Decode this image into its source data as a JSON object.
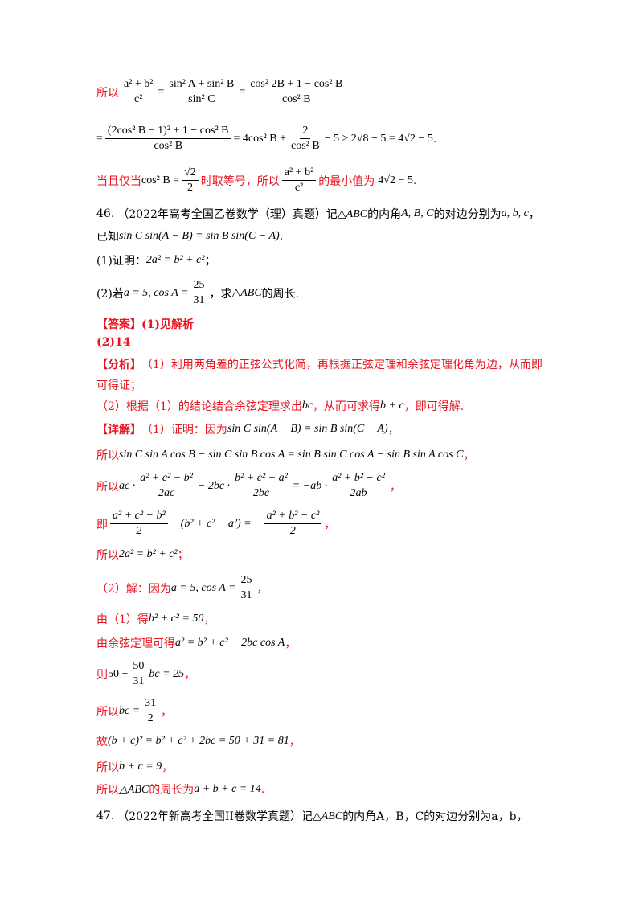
{
  "top": {
    "l1_prefix": "所以",
    "l1_math": [
      "a² + b²",
      "c²",
      "=",
      "sin² A + sin² B",
      "sin² C",
      "=",
      "cos² 2B + 1 − cos² B",
      "cos² B"
    ],
    "l2_math": [
      "=",
      "(2cos² B − 1)² + 1 − cos² B",
      "cos² B",
      "= 4cos² B +",
      "2",
      "cos² B",
      "− 5 ≥ 2√8 − 5 = 4√2 − 5",
      "."
    ],
    "l3_prefix": "当且仅当",
    "l3_math1": "cos² B =",
    "l3_frac": [
      "√2",
      "2"
    ],
    "l3_mid": "时取等号，所以",
    "l3_frac2": [
      "a² + b²",
      "c²"
    ],
    "l3_suffix": "的最小值为",
    "l3_value": "4√2 − 5",
    "l3_dot": "."
  },
  "q46": {
    "number": "46.",
    "source": "（2022年高考全国乙卷数学（理）真题）记",
    "triangle": "△ABC",
    "text1": "的内角",
    "angles": "A, B, C",
    "text2": "的对边分别为",
    "sides": "a, b, c",
    "text3": "，",
    "given_prefix": "已知",
    "given_math": "sin C sin(A − B) = sin B sin(C − A)",
    "given_dot": ".",
    "part1_label": "(1)证明：",
    "part1_math": "2a² = b² + c²",
    "part1_end": "；",
    "part2_label": "(2)若",
    "part2_math": "a = 5, cos A =",
    "part2_frac": [
      "25",
      "31"
    ],
    "part2_mid": "，求",
    "part2_tri": "△ABC",
    "part2_end": "的周长."
  },
  "answer": {
    "tag": "【答案】",
    "line1": "(1)见解析",
    "line2": "(2)14"
  },
  "analysis": {
    "tag": "【分析】",
    "text1": "（1）利用两角差的正弦公式化简，再根据正弦定理和余弦定理化角为边，从而即",
    "text2": "可得证；",
    "text3a": "（2）根据（1）的结论结合余弦定理求出",
    "text3b": "bc",
    "text3c": "，从而可求得",
    "text3d": "b + c",
    "text3e": "，即可得解."
  },
  "detail": {
    "tag": "【详解】",
    "s1a": "（1）证明：因为",
    "s1b": "sin C sin(A − B) = sin B sin(C − A)",
    "s1c": "，",
    "s2a": "所以",
    "s2b": "sin C sin A cos B − sin C sin B cos A = sin B sin C cos A − sin B sin A cos C",
    "s2c": "，",
    "s3a": "所以",
    "s3_parts": [
      "ac ·",
      "a² + c² − b²",
      "2ac",
      "− 2bc ·",
      "b² + c² − a²",
      "2bc",
      "= −ab ·",
      "a² + b² − c²",
      "2ab"
    ],
    "s3c": "，",
    "s4a": "即",
    "s4_parts": [
      "a² + c² − b²",
      "2",
      "− (b² + c² − a²) = −",
      "a² + b² − c²",
      "2"
    ],
    "s4c": "，",
    "s5a": "所以",
    "s5b": "2a² = b² + c²",
    "s5c": "；",
    "s6a": "（2）解：因为",
    "s6b": "a = 5, cos A =",
    "s6_frac": [
      "25",
      "31"
    ],
    "s6c": "，",
    "s7a": "由（1）得",
    "s7b": "b² + c² = 50",
    "s7c": "，",
    "s8a": "由余弦定理可得",
    "s8b": "a² = b² + c² − 2bc cos A",
    "s8c": "，",
    "s9a": "则",
    "s9b1": "50 −",
    "s9_frac": [
      "50",
      "31"
    ],
    "s9b2": "bc = 25",
    "s9c": "，",
    "s10a": "所以",
    "s10b": "bc =",
    "s10_frac": [
      "31",
      "2"
    ],
    "s10c": "，",
    "s11a": "故",
    "s11b": "(b + c)² = b² + c² + 2bc = 50 + 31 = 81",
    "s11c": "，",
    "s12a": "所以",
    "s12b": "b + c = 9",
    "s12c": "，",
    "s13a": "所以",
    "s13b": "△ABC",
    "s13c": "的周长为",
    "s13d": "a + b + c = 14",
    "s13e": "."
  },
  "q47": {
    "number": "47.",
    "source": "（2022年新高考全国II卷数学真题）记",
    "triangle": "△ABC",
    "text": "的内角A，B，C的对边分别为a，b，"
  }
}
